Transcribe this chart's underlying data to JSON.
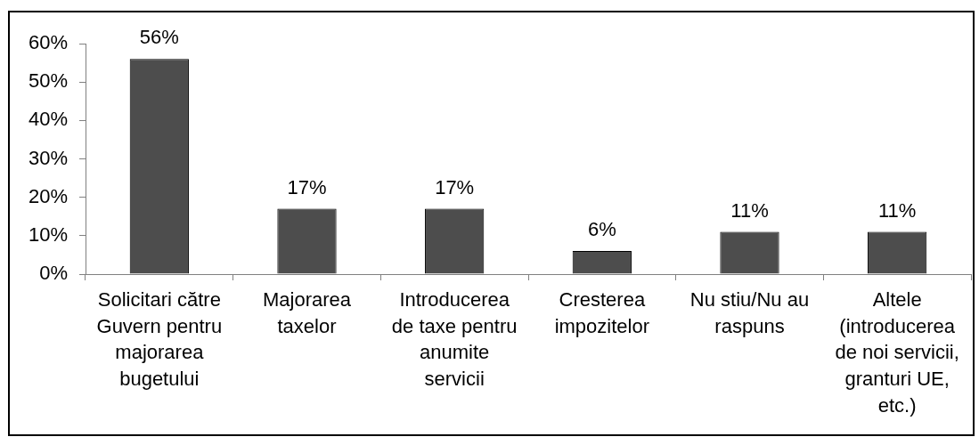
{
  "chart_data": {
    "type": "bar",
    "categories": [
      "Solicitari către Guvern pentru majorarea bugetului",
      "Majorarea taxelor",
      "Introducerea de taxe pentru anumite servicii",
      "Cresterea impozitelor",
      "Nu stiu/Nu au raspuns",
      "Altele (introducerea de noi servicii, granturi UE, etc.)"
    ],
    "values": [
      56,
      17,
      17,
      6,
      11,
      11
    ],
    "value_labels": [
      "56%",
      "17%",
      "17%",
      "6%",
      "11%",
      "11%"
    ],
    "color": "#4d4d4d",
    "ylim": [
      0,
      60
    ],
    "yticks": [
      {
        "value": 0,
        "label": "0%"
      },
      {
        "value": 10,
        "label": "10%"
      },
      {
        "value": 20,
        "label": "20%"
      },
      {
        "value": 30,
        "label": "30%"
      },
      {
        "value": 40,
        "label": "40%"
      },
      {
        "value": 50,
        "label": "50%"
      },
      {
        "value": 60,
        "label": "60%"
      }
    ],
    "grid": false,
    "legend": false
  }
}
